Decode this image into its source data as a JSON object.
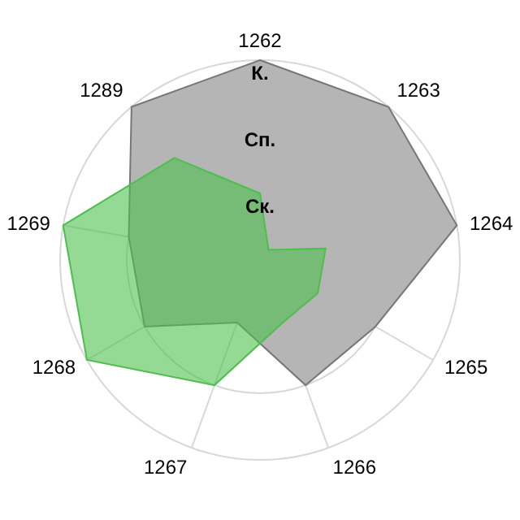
{
  "chart_data": {
    "type": "radar",
    "categories": [
      "1262",
      "1263",
      "1264",
      "1265",
      "1266",
      "1267",
      "1268",
      "1269",
      "1289"
    ],
    "series": [
      {
        "color": "#b5b5b5",
        "values": [
          3,
          3,
          3,
          2,
          2,
          1,
          2,
          2,
          3
        ]
      },
      {
        "color": "#4cbf4c",
        "values": [
          1,
          0.2,
          1,
          1,
          1,
          2,
          3,
          3,
          2
        ]
      }
    ],
    "ylim": [
      0,
      3
    ],
    "yticks": [
      {
        "value": 1,
        "label": "Ск."
      },
      {
        "value": 2,
        "label": "Сп."
      },
      {
        "value": 3,
        "label": "К."
      }
    ],
    "grid": true,
    "legend": false
  }
}
